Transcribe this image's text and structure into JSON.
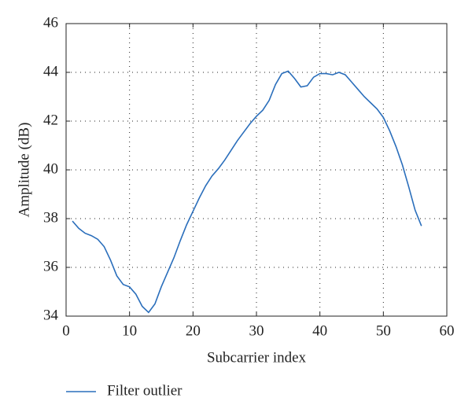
{
  "chart_data": {
    "type": "line",
    "xlabel": "Subcarrier index",
    "ylabel": "Amplitude (dB)",
    "x": [
      1,
      2,
      3,
      4,
      5,
      6,
      7,
      8,
      9,
      10,
      11,
      12,
      13,
      14,
      15,
      16,
      17,
      18,
      19,
      20,
      21,
      22,
      23,
      24,
      25,
      26,
      27,
      28,
      29,
      30,
      31,
      32,
      33,
      34,
      35,
      36,
      37,
      38,
      39,
      40,
      41,
      42,
      43,
      44,
      45,
      46,
      47,
      48,
      49,
      50,
      51,
      52,
      53,
      54,
      55,
      56
    ],
    "series": [
      {
        "name": "Filter outlier",
        "color": "#2a6ebb",
        "values": [
          37.9,
          37.6,
          37.4,
          37.3,
          37.15,
          36.85,
          36.3,
          35.65,
          35.3,
          35.2,
          34.9,
          34.4,
          34.15,
          34.5,
          35.2,
          35.8,
          36.4,
          37.1,
          37.75,
          38.3,
          38.85,
          39.35,
          39.75,
          40.05,
          40.4,
          40.8,
          41.2,
          41.55,
          41.9,
          42.2,
          42.45,
          42.85,
          43.5,
          43.95,
          44.05,
          43.75,
          43.4,
          43.45,
          43.8,
          43.95,
          43.95,
          43.9,
          44.0,
          43.9,
          43.6,
          43.3,
          43.0,
          42.75,
          42.5,
          42.15,
          41.6,
          40.95,
          40.2,
          39.3,
          38.35,
          37.7
        ]
      }
    ],
    "xlim": [
      0,
      60
    ],
    "xticks": [
      0,
      10,
      20,
      30,
      40,
      50,
      60
    ],
    "ylim": [
      34,
      46
    ],
    "yticks": [
      34,
      36,
      38,
      40,
      42,
      44,
      46
    ],
    "grid": true,
    "legend": "bottom"
  }
}
